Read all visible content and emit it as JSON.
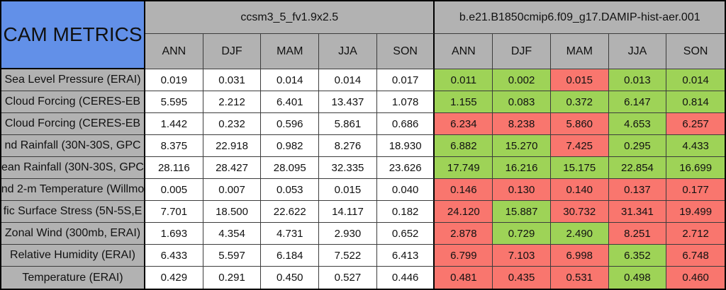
{
  "colors": {
    "header_bg": "#b2b2b2",
    "corner_bg": "#6290e8",
    "good_cell": "#9ed357",
    "bad_cell": "#f9766e",
    "neutral_cell": "#ffffff",
    "grid_line": "#3c3c3c",
    "frame": "#000000",
    "text": "#111111"
  },
  "chart_data": {
    "type": "table",
    "corner_label": "CAM METRICS",
    "groups": [
      {
        "label": "ccsm3_5_fv1.9x2.5",
        "seasons": [
          "ANN",
          "DJF",
          "MAM",
          "JJA",
          "SON"
        ]
      },
      {
        "label": "b.e21.B1850cmip6.f09_g17.DAMIP-hist-aer.001",
        "seasons": [
          "ANN",
          "DJF",
          "MAM",
          "JJA",
          "SON"
        ]
      }
    ],
    "cell_status_legend": {
      "good": "#9ed357",
      "bad": "#f9766e"
    },
    "rows": [
      {
        "label": "Sea Level Pressure (ERAI)",
        "model1": [
          "0.019",
          "0.031",
          "0.014",
          "0.014",
          "0.017"
        ],
        "model2_values": [
          "0.011",
          "0.002",
          "0.015",
          "0.013",
          "0.014"
        ],
        "model2_status": [
          "good",
          "good",
          "bad",
          "good",
          "good"
        ]
      },
      {
        "label": "Cloud Forcing (CERES-EB",
        "model1": [
          "5.595",
          "2.212",
          "6.401",
          "13.437",
          "1.078"
        ],
        "model2_values": [
          "1.155",
          "0.083",
          "0.372",
          "6.147",
          "0.814"
        ],
        "model2_status": [
          "good",
          "good",
          "good",
          "good",
          "good"
        ]
      },
      {
        "label": "Cloud Forcing (CERES-EB",
        "model1": [
          "1.442",
          "0.232",
          "0.596",
          "5.861",
          "0.686"
        ],
        "model2_values": [
          "6.234",
          "8.238",
          "5.860",
          "4.653",
          "6.257"
        ],
        "model2_status": [
          "bad",
          "bad",
          "bad",
          "good",
          "bad"
        ]
      },
      {
        "label": "nd Rainfall (30N-30S, GPC",
        "model1": [
          "8.375",
          "22.918",
          "0.982",
          "8.276",
          "18.930"
        ],
        "model2_values": [
          "6.882",
          "15.270",
          "7.425",
          "0.295",
          "4.433"
        ],
        "model2_status": [
          "good",
          "good",
          "bad",
          "good",
          "good"
        ]
      },
      {
        "label": "ean Rainfall (30N-30S, GPC",
        "model1": [
          "28.116",
          "28.427",
          "28.095",
          "32.335",
          "23.626"
        ],
        "model2_values": [
          "17.749",
          "16.216",
          "15.175",
          "22.854",
          "16.699"
        ],
        "model2_status": [
          "good",
          "good",
          "good",
          "good",
          "good"
        ]
      },
      {
        "label": "nd 2-m Temperature (Willmo",
        "model1": [
          "0.005",
          "0.007",
          "0.053",
          "0.015",
          "0.040"
        ],
        "model2_values": [
          "0.146",
          "0.130",
          "0.140",
          "0.137",
          "0.177"
        ],
        "model2_status": [
          "bad",
          "bad",
          "bad",
          "bad",
          "bad"
        ]
      },
      {
        "label": "fic Surface Stress (5N-5S,E",
        "model1": [
          "7.701",
          "18.500",
          "22.622",
          "14.117",
          "0.182"
        ],
        "model2_values": [
          "24.120",
          "15.887",
          "30.732",
          "31.341",
          "19.499"
        ],
        "model2_status": [
          "bad",
          "good",
          "bad",
          "bad",
          "bad"
        ]
      },
      {
        "label": "Zonal Wind (300mb, ERAI)",
        "model1": [
          "1.693",
          "4.354",
          "4.731",
          "2.930",
          "0.652"
        ],
        "model2_values": [
          "2.878",
          "0.729",
          "2.490",
          "8.251",
          "2.712"
        ],
        "model2_status": [
          "bad",
          "good",
          "good",
          "bad",
          "bad"
        ]
      },
      {
        "label": "Relative Humidity (ERAI)",
        "model1": [
          "6.433",
          "5.597",
          "6.184",
          "7.522",
          "6.413"
        ],
        "model2_values": [
          "6.799",
          "7.103",
          "6.998",
          "6.352",
          "6.748"
        ],
        "model2_status": [
          "bad",
          "bad",
          "bad",
          "good",
          "bad"
        ]
      },
      {
        "label": "Temperature (ERAI)",
        "model1": [
          "0.429",
          "0.291",
          "0.450",
          "0.527",
          "0.446"
        ],
        "model2_values": [
          "0.481",
          "0.435",
          "0.531",
          "0.498",
          "0.460"
        ],
        "model2_status": [
          "bad",
          "bad",
          "bad",
          "good",
          "bad"
        ]
      }
    ]
  }
}
